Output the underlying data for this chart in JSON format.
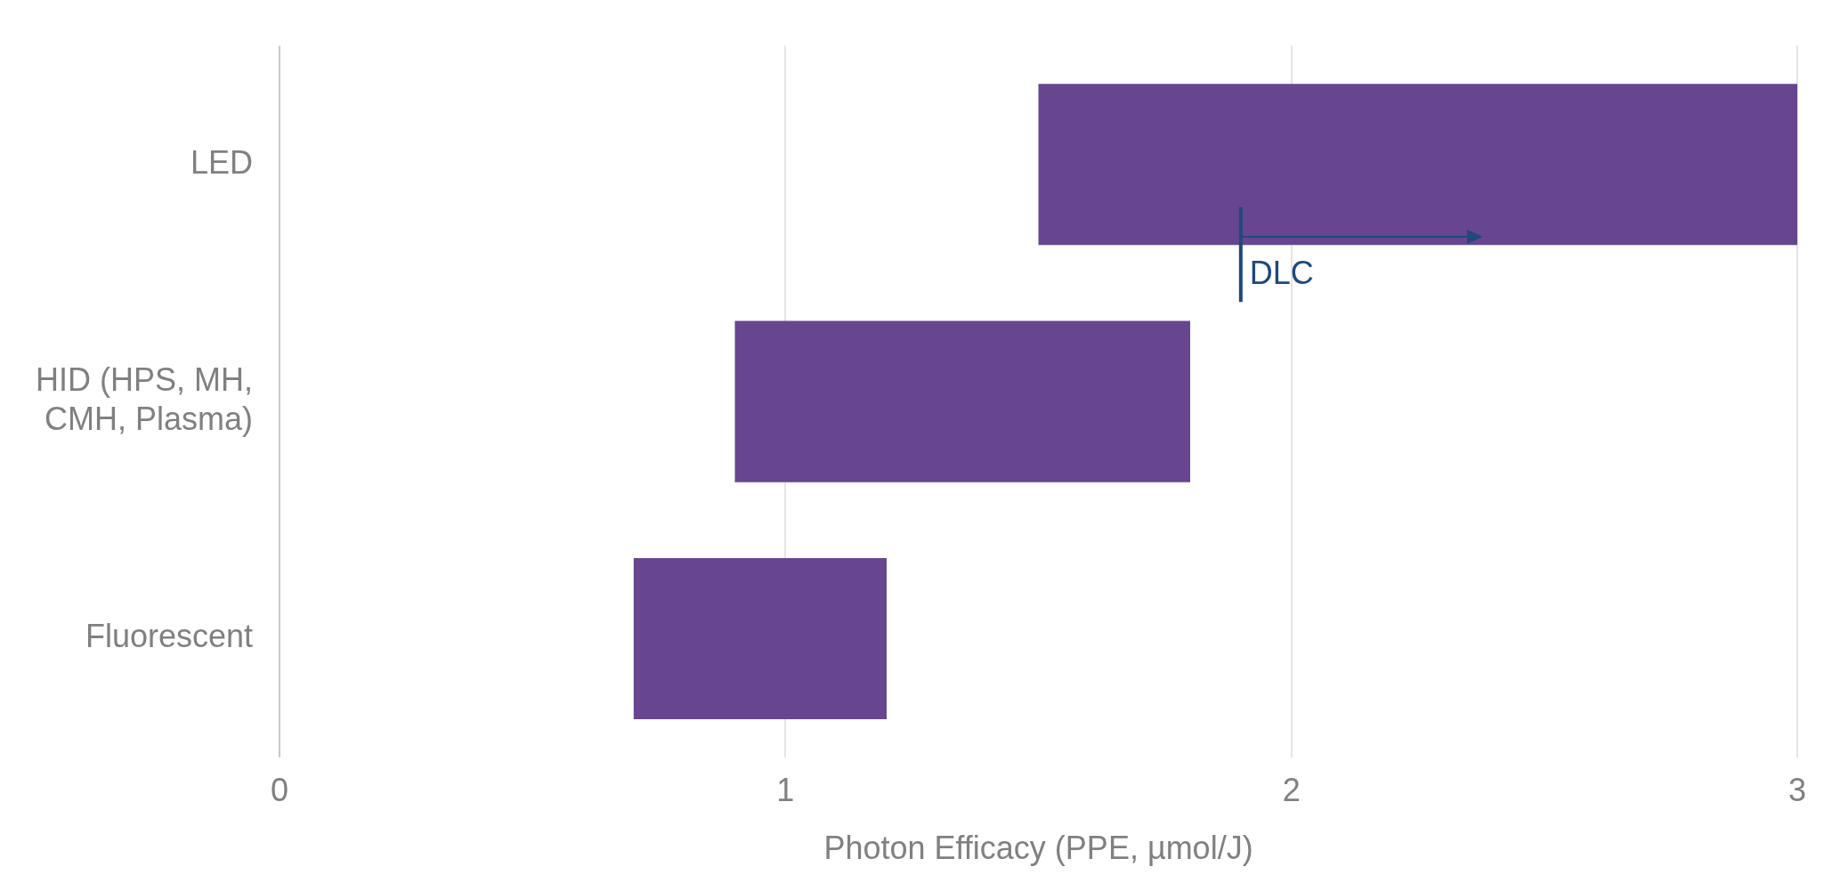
{
  "chart_data": {
    "type": "bar",
    "orientation": "horizontal",
    "xlabel": "Photon Efficacy (PPE, µmol/J)",
    "categories": [
      "LED",
      "HID (HPS, MH, CMH, Plasma)",
      "Fluorescent"
    ],
    "base": [
      1.5,
      0.9,
      0.7
    ],
    "values": [
      1.5,
      0.9,
      0.5
    ],
    "color": "#67468f",
    "xlim": [
      0,
      3
    ],
    "xticks": [
      0,
      1,
      2,
      3
    ],
    "grid": "x",
    "legend": false,
    "ref_lines": [
      {
        "axis": "x",
        "value": 1.9,
        "label": "DLC",
        "color": "#1f497d"
      }
    ]
  }
}
